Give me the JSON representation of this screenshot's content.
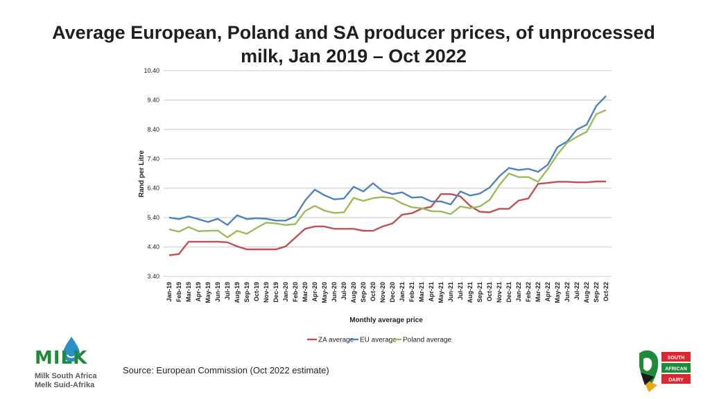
{
  "chart_data": {
    "type": "line",
    "title": "Average European, Poland and SA producer prices, of unprocessed milk, Jan 2019 – Oct 2022",
    "xlabel": "Monthly average price",
    "ylabel": "Rand per Litre",
    "ylim": [
      3.4,
      10.4
    ],
    "yticks": [
      "3.40",
      "4.40",
      "5.40",
      "6.40",
      "7.40",
      "8.40",
      "9.40",
      "10.40"
    ],
    "categories": [
      "Jan-19",
      "Feb-19",
      "Mar-19",
      "Apr-19",
      "May-19",
      "Jun-19",
      "Jul-19",
      "Aug-19",
      "Sep-19",
      "Oct-19",
      "Nov-19",
      "Dec-19",
      "Jan-20",
      "Feb-20",
      "Mar-20",
      "Apr-20",
      "May-20",
      "Jun-20",
      "Jul-20",
      "Aug-20",
      "Sep-20",
      "Oct-20",
      "Nov-20",
      "Dec-20",
      "Jan-21",
      "Feb-21",
      "Mar-21",
      "Apr-21",
      "May-21",
      "Jun-21",
      "Jul-21",
      "Aug-21",
      "Sep-21",
      "Oct-21",
      "Nov-21",
      "Dec-21",
      "Jan-22",
      "Feb-22",
      "Mar-22",
      "Apr-22",
      "May-22",
      "Jun-22",
      "Jul-22",
      "Aug-22",
      "Sep-22",
      "Oct-22"
    ],
    "series": [
      {
        "name": "ZA average",
        "color": "#c0504d",
        "values": [
          4.12,
          4.16,
          4.58,
          4.58,
          4.58,
          4.58,
          4.56,
          4.42,
          4.32,
          4.32,
          4.32,
          4.32,
          4.42,
          4.72,
          5.02,
          5.1,
          5.1,
          5.02,
          5.02,
          5.02,
          4.95,
          4.95,
          5.1,
          5.2,
          5.5,
          5.55,
          5.7,
          5.77,
          6.2,
          6.2,
          6.12,
          5.8,
          5.6,
          5.58,
          5.7,
          5.7,
          5.98,
          6.05,
          6.55,
          6.58,
          6.62,
          6.62,
          6.6,
          6.6,
          6.63,
          6.63
        ]
      },
      {
        "name": "EU average",
        "color": "#4f81bd",
        "values": [
          5.4,
          5.35,
          5.44,
          5.35,
          5.25,
          5.36,
          5.15,
          5.48,
          5.35,
          5.38,
          5.36,
          5.3,
          5.3,
          5.45,
          5.98,
          6.35,
          6.16,
          6.02,
          6.05,
          6.45,
          6.29,
          6.57,
          6.3,
          6.2,
          6.26,
          6.08,
          6.1,
          5.95,
          5.95,
          5.85,
          6.29,
          6.15,
          6.22,
          6.42,
          6.8,
          7.09,
          7.02,
          7.06,
          6.96,
          7.2,
          7.8,
          7.99,
          8.4,
          8.56,
          9.2,
          9.54
        ]
      },
      {
        "name": "Poland average",
        "color": "#9bbb59",
        "values": [
          5.0,
          4.92,
          5.08,
          4.94,
          4.95,
          4.96,
          4.73,
          4.95,
          4.85,
          5.05,
          5.23,
          5.2,
          5.15,
          5.18,
          5.62,
          5.8,
          5.64,
          5.56,
          5.58,
          6.07,
          5.97,
          6.06,
          6.1,
          6.06,
          5.88,
          5.75,
          5.72,
          5.62,
          5.61,
          5.52,
          5.78,
          5.72,
          5.78,
          6.0,
          6.5,
          6.9,
          6.78,
          6.78,
          6.62,
          7.05,
          7.55,
          7.95,
          8.15,
          8.32,
          8.92,
          9.06
        ]
      }
    ],
    "legend": "bottom"
  },
  "source": "Source: European Commission (Oct 2022 estimate)",
  "logo_left": {
    "brand": "MILK",
    "line1": "Milk South Africa",
    "line2": "Melk Suid-Afrika"
  },
  "logo_right": {
    "lines": [
      "SOUTH",
      "AFRICAN",
      "DAIRY"
    ]
  }
}
